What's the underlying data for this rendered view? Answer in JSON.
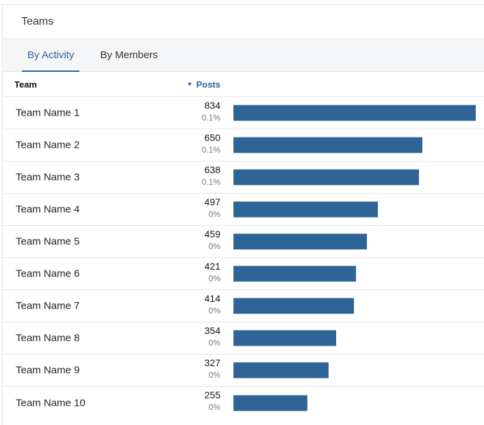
{
  "panel": {
    "title": "Teams"
  },
  "tabs": [
    {
      "label": "By Activity",
      "active": true
    },
    {
      "label": "By Members",
      "active": false
    }
  ],
  "table": {
    "headers": {
      "team": "Team",
      "posts": "Posts",
      "sort_icon": "caret-down-icon"
    },
    "max_value": 834,
    "rows": [
      {
        "team": "Team Name 1",
        "posts": 834,
        "percent": "0.1%"
      },
      {
        "team": "Team Name 2",
        "posts": 650,
        "percent": "0.1%"
      },
      {
        "team": "Team Name 3",
        "posts": 638,
        "percent": "0.1%"
      },
      {
        "team": "Team Name 4",
        "posts": 497,
        "percent": "0%"
      },
      {
        "team": "Team Name 5",
        "posts": 459,
        "percent": "0%"
      },
      {
        "team": "Team Name 6",
        "posts": 421,
        "percent": "0%"
      },
      {
        "team": "Team Name 7",
        "posts": 414,
        "percent": "0%"
      },
      {
        "team": "Team Name 8",
        "posts": 354,
        "percent": "0%"
      },
      {
        "team": "Team Name 9",
        "posts": 327,
        "percent": "0%"
      },
      {
        "team": "Team Name 10",
        "posts": 255,
        "percent": "0%"
      }
    ]
  },
  "colors": {
    "bar": "#2e6496",
    "accent": "#2e6496"
  }
}
